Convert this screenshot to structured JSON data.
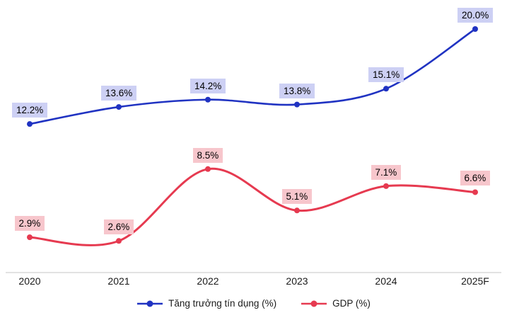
{
  "chart_data": {
    "type": "line",
    "categories": [
      "2020",
      "2021",
      "2022",
      "2023",
      "2024",
      "2025F"
    ],
    "series": [
      {
        "name": "Tăng trưởng tín dụng (%)",
        "values": [
          12.2,
          13.6,
          14.2,
          13.8,
          15.1,
          20.0
        ],
        "color": "#2033c2",
        "label_bg": "#cdd0f4"
      },
      {
        "name": "GDP (%)",
        "values": [
          2.9,
          2.6,
          8.5,
          5.1,
          7.1,
          6.6
        ],
        "color": "#e63a50",
        "label_bg": "#f7c6cc"
      }
    ],
    "labels": [
      [
        "12.2%",
        "13.6%",
        "14.2%",
        "13.8%",
        "15.1%",
        "20.0%"
      ],
      [
        "2.9%",
        "2.6%",
        "8.5%",
        "5.1%",
        "7.1%",
        "6.6%"
      ]
    ],
    "title": "",
    "xlabel": "",
    "ylabel": "",
    "ylim": [
      0,
      22
    ],
    "grid": false,
    "curve": "smooth",
    "legend_position": "bottom",
    "axis_line_color": "#d9d9d9",
    "background_color": "#ffffff"
  }
}
